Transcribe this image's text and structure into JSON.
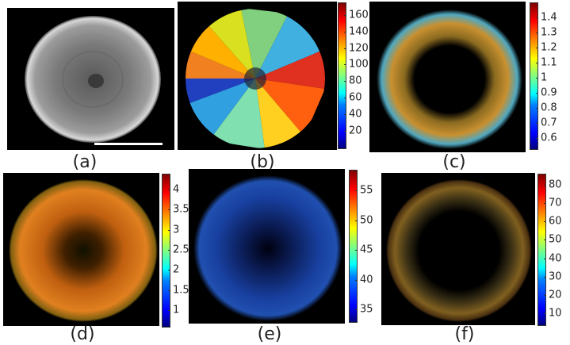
{
  "panels": [
    {
      "id": "a",
      "label": "(a)",
      "colorbar": null
    },
    {
      "id": "b",
      "label": "(b)",
      "colorbar": {
        "ticks": [
          "160",
          "140",
          "120",
          "100",
          "80",
          "60",
          "40",
          "20"
        ],
        "min": 0,
        "max": 175
      }
    },
    {
      "id": "c",
      "label": "(c)",
      "colorbar": {
        "ticks": [
          "1.4",
          "1.3",
          "1.2",
          "1.1",
          "1",
          "0.9",
          "0.8",
          "0.7",
          "0.6"
        ],
        "min": 0.53,
        "max": 1.5
      }
    },
    {
      "id": "d",
      "label": "(d)",
      "colorbar": {
        "ticks": [
          "4",
          "3.5",
          "3",
          "2.5",
          "2",
          "1.5",
          "1"
        ],
        "min": 0.6,
        "max": 4.4
      }
    },
    {
      "id": "e",
      "label": "(e)",
      "colorbar": {
        "ticks": [
          "55",
          "50",
          "45",
          "40",
          "35"
        ],
        "min": 33,
        "max": 58.5
      }
    },
    {
      "id": "f",
      "label": "(f)",
      "colorbar": {
        "ticks": [
          "80",
          "70",
          "60",
          "50",
          "40",
          "30",
          "20",
          "10"
        ],
        "min": 4,
        "max": 86
      }
    }
  ],
  "colors": {
    "background": "#000000",
    "low": "#00007f",
    "high": "#7f0000"
  }
}
